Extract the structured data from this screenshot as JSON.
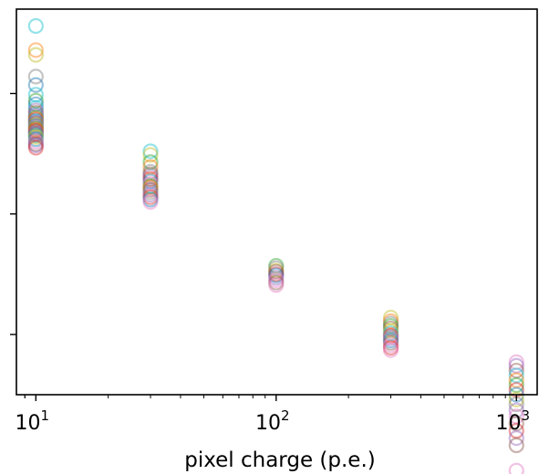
{
  "chart_data": {
    "type": "scatter",
    "title": "",
    "xlabel": "pixel charge (p.e.)",
    "ylabel": "",
    "xscale": "log",
    "xlim": [
      8.3,
      1220
    ],
    "ylim": [
      -0.5,
      2.7
    ],
    "x_ticks": [
      {
        "value": 10,
        "base": "10",
        "exp": "1"
      },
      {
        "value": 100,
        "base": "10",
        "exp": "2"
      },
      {
        "value": 1000,
        "base": "10",
        "exp": "3"
      }
    ],
    "y_ticks": [
      0,
      1,
      2
    ],
    "y_tick_labels_visible": false,
    "grid": false,
    "legend": "none",
    "marker": "open-circle",
    "marker_alpha": 0.45,
    "palette": [
      "#1f77b4",
      "#ff7f0e",
      "#2ca02c",
      "#d62728",
      "#9467bd",
      "#8c564b",
      "#e377c2",
      "#7f7f7f",
      "#bcbd22",
      "#17becf"
    ],
    "point_groups": [
      {
        "x": 10,
        "y": [
          2.56,
          2.36,
          2.32,
          2.14,
          2.07,
          1.99,
          1.94,
          1.91,
          1.88,
          1.86,
          1.84,
          1.82,
          1.81,
          1.8,
          1.79,
          1.78,
          1.77,
          1.76,
          1.75,
          1.74,
          1.73,
          1.72,
          1.71,
          1.7,
          1.69,
          1.68,
          1.67,
          1.66,
          1.65,
          1.64,
          1.62,
          1.6,
          1.58,
          1.57,
          1.55
        ],
        "colors": [
          "#17becf",
          "#ff7f0e",
          "#bcbd22",
          "#7f7f7f",
          "#1f77b4",
          "#17becf",
          "#2ca02c",
          "#1f77b4",
          "#17becf",
          "#9467bd",
          "#8c564b",
          "#1f77b4",
          "#e377c2",
          "#2ca02c",
          "#ff7f0e",
          "#d62728",
          "#17becf",
          "#9467bd",
          "#8c564b",
          "#bcbd22",
          "#1f77b4",
          "#e377c2",
          "#2ca02c",
          "#ff7f0e",
          "#d62728",
          "#7f7f7f",
          "#9467bd",
          "#8c564b",
          "#17becf",
          "#bcbd22",
          "#1f77b4",
          "#e377c2",
          "#8c564b",
          "#9467bd",
          "#d62728"
        ]
      },
      {
        "x": 30,
        "y": [
          1.52,
          1.49,
          1.43,
          1.39,
          1.35,
          1.33,
          1.31,
          1.29,
          1.27,
          1.25,
          1.23,
          1.22,
          1.2,
          1.18,
          1.16,
          1.14,
          1.12,
          1.1
        ],
        "colors": [
          "#17becf",
          "#bcbd22",
          "#2ca02c",
          "#ff7f0e",
          "#7f7f7f",
          "#8c564b",
          "#9467bd",
          "#d62728",
          "#1f77b4",
          "#e377c2",
          "#2ca02c",
          "#ff7f0e",
          "#8c564b",
          "#7f7f7f",
          "#9467bd",
          "#d62728",
          "#1f77b4",
          "#e377c2"
        ]
      },
      {
        "x": 100,
        "y": [
          0.57,
          0.55,
          0.53,
          0.52,
          0.5,
          0.49,
          0.47,
          0.45,
          0.43,
          0.41
        ],
        "colors": [
          "#2ca02c",
          "#7f7f7f",
          "#bcbd22",
          "#8c564b",
          "#d62728",
          "#1f77b4",
          "#9467bd",
          "#e377c2",
          "#8c564b",
          "#e377c2"
        ]
      },
      {
        "x": 300,
        "y": [
          0.14,
          0.11,
          0.09,
          0.07,
          0.05,
          0.03,
          0.01,
          -0.01,
          -0.03,
          -0.05,
          -0.07,
          -0.09,
          -0.11,
          -0.13
        ],
        "colors": [
          "#bcbd22",
          "#ff7f0e",
          "#7f7f7f",
          "#2ca02c",
          "#8c564b",
          "#bcbd22",
          "#17becf",
          "#d62728",
          "#9467bd",
          "#1f77b4",
          "#8c564b",
          "#e377c2",
          "#d62728",
          "#e377c2"
        ]
      },
      {
        "x": 1000,
        "y": [
          -0.23,
          -0.26,
          -0.3,
          -0.34,
          -0.38,
          -0.42,
          -0.46,
          -0.5,
          -0.54,
          -0.58,
          -0.63,
          -0.68,
          -0.74,
          -0.8,
          -0.86,
          -0.92,
          -1.13
        ],
        "colors": [
          "#e377c2",
          "#9467bd",
          "#8c564b",
          "#17becf",
          "#ff7f0e",
          "#2ca02c",
          "#d62728",
          "#1f77b4",
          "#bcbd22",
          "#7f7f7f",
          "#9467bd",
          "#e377c2",
          "#8c564b",
          "#d62728",
          "#9467bd",
          "#8c564b",
          "#e377c2"
        ]
      }
    ]
  }
}
